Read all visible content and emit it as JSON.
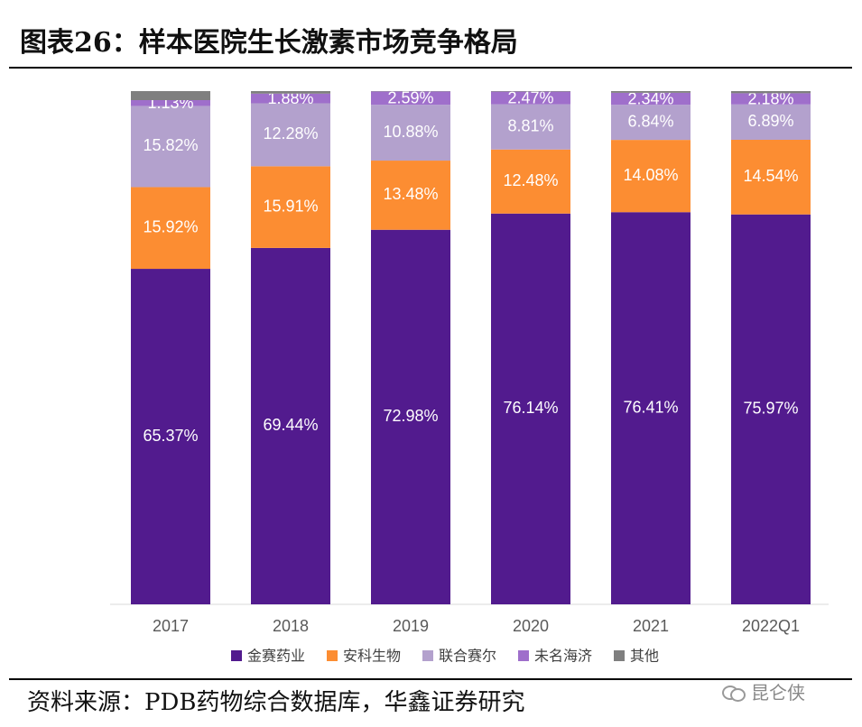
{
  "title": "图表26：样本医院生长激素市场竞争格局",
  "source": "资料来源：PDB药物综合数据库，华鑫证券研究",
  "watermark": "昆仑侠",
  "chart_data": {
    "type": "bar",
    "stacked": true,
    "categories": [
      "2017",
      "2018",
      "2019",
      "2020",
      "2021",
      "2022Q1"
    ],
    "ylim": [
      0,
      100
    ],
    "grid": false,
    "legend_position": "bottom",
    "series": [
      {
        "name": "金赛药业",
        "color": "#521B8E",
        "values": [
          65.37,
          69.44,
          72.98,
          76.14,
          76.41,
          75.97
        ],
        "labels": [
          "65.37%",
          "69.44%",
          "72.98%",
          "76.14%",
          "76.41%",
          "75.97%"
        ]
      },
      {
        "name": "安科生物",
        "color": "#FC8D32",
        "values": [
          15.92,
          15.91,
          13.48,
          12.48,
          14.08,
          14.54
        ],
        "labels": [
          "15.92%",
          "15.91%",
          "13.48%",
          "12.48%",
          "14.08%",
          "14.54%"
        ]
      },
      {
        "name": "联合赛尔",
        "color": "#B3A1CD",
        "values": [
          15.82,
          12.28,
          10.88,
          8.81,
          6.84,
          6.89
        ],
        "labels": [
          "15.82%",
          "12.28%",
          "10.88%",
          "8.81%",
          "6.84%",
          "6.89%"
        ]
      },
      {
        "name": "未名海济",
        "color": "#9F6FCB",
        "values": [
          1.13,
          1.88,
          2.59,
          2.47,
          2.34,
          2.18
        ],
        "labels": [
          "1.13%",
          "1.88%",
          "2.59%",
          "2.47%",
          "2.34%",
          "2.18%"
        ]
      },
      {
        "name": "其他",
        "color": "#7F7F7F",
        "values": [
          1.76,
          0.49,
          0.07,
          0.1,
          0.33,
          0.42
        ],
        "labels": [
          "",
          "",
          "",
          "",
          "",
          ""
        ]
      }
    ]
  }
}
